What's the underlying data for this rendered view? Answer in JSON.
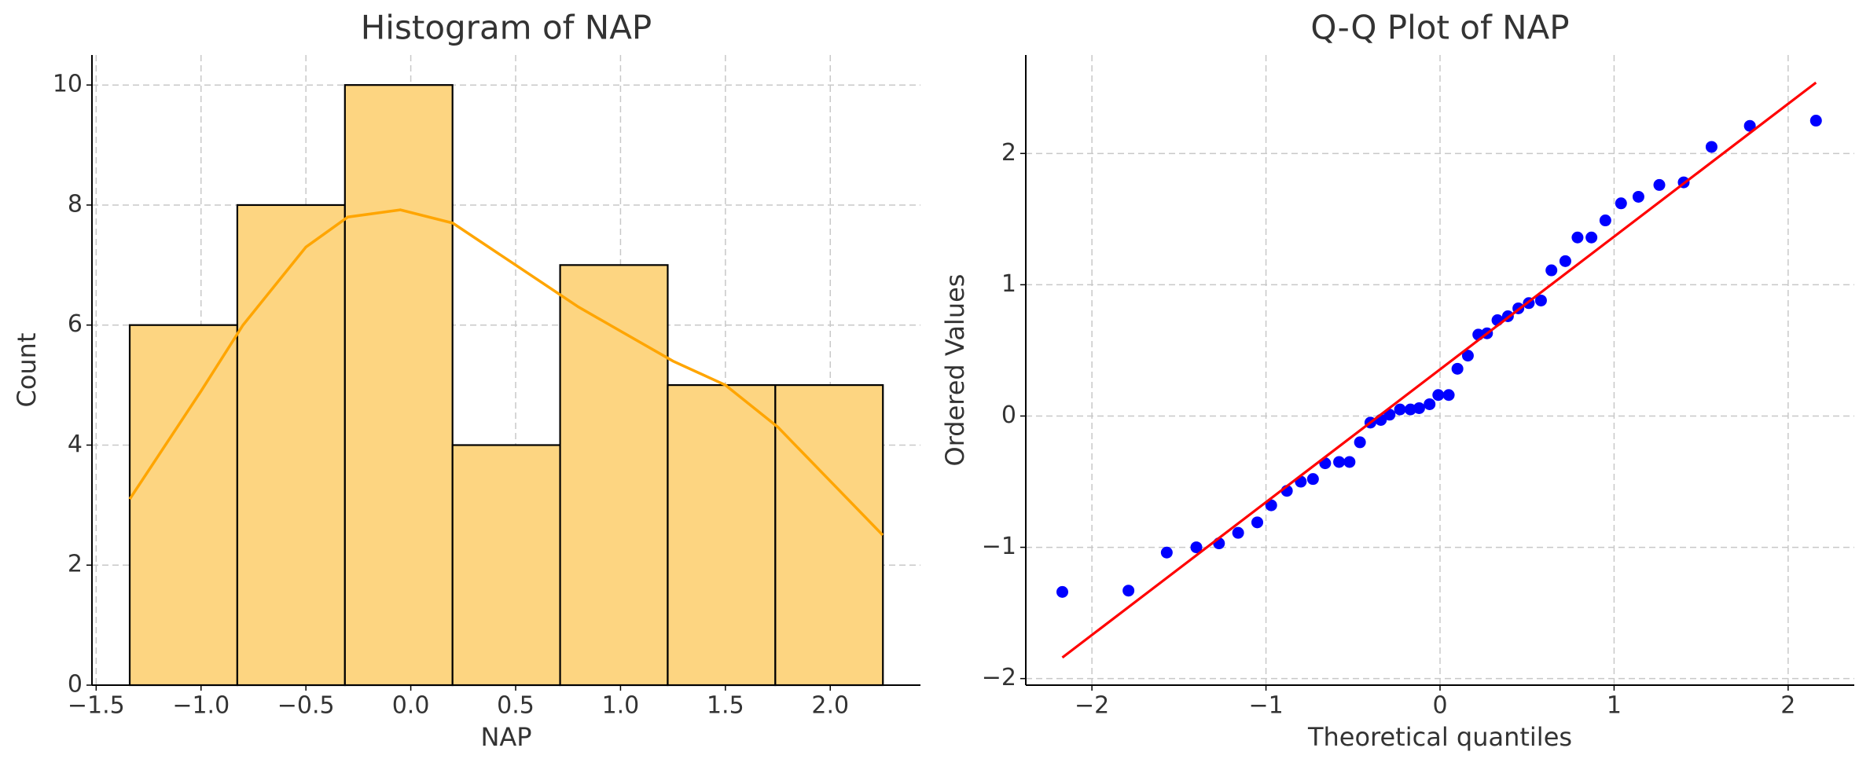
{
  "chart_data": [
    {
      "type": "histogram",
      "title": "Histogram of NAP",
      "x_label": "NAP",
      "y_label": "Count",
      "bins": [
        -1.34,
        -0.827,
        -0.314,
        0.199,
        0.712,
        1.225,
        1.738,
        2.251
      ],
      "values": [
        6,
        8,
        10,
        4,
        7,
        5,
        5
      ],
      "color": "#fdd581",
      "edgecolor": "#000000",
      "kde": {
        "x": [
          -1.34,
          -1.0,
          -0.8,
          -0.5,
          -0.3,
          -0.05,
          0.2,
          0.5,
          0.8,
          1.0,
          1.25,
          1.5,
          1.75,
          2.0,
          2.25
        ],
        "values": [
          3.1,
          4.9,
          6.0,
          7.3,
          7.8,
          7.92,
          7.7,
          7.0,
          6.3,
          5.9,
          5.4,
          5.0,
          4.3,
          3.4,
          2.5
        ],
        "color": "#ffa500"
      },
      "xlim": [
        -1.52,
        2.43
      ],
      "ylim": [
        0,
        10.5
      ],
      "xticks": [
        {
          "value": -1.5,
          "label": "−1.5"
        },
        {
          "value": -1.0,
          "label": "−1.0"
        },
        {
          "value": -0.5,
          "label": "−0.5"
        },
        {
          "value": 0,
          "label": "0.0"
        },
        0.5,
        {
          "value": 1,
          "label": "1.0"
        },
        1.5,
        {
          "value": 2,
          "label": "2.0"
        }
      ],
      "yticks": [
        0,
        2,
        4,
        6,
        8,
        10
      ],
      "grid": true
    },
    {
      "type": "scatter",
      "title": "Q-Q Plot of NAP",
      "x_label": "Theoretical quantiles",
      "y_label": "Ordered Values",
      "x": [
        -2.17,
        -1.79,
        -1.57,
        -1.4,
        -1.27,
        -1.16,
        -1.05,
        -0.97,
        -0.88,
        -0.8,
        -0.73,
        -0.66,
        -0.58,
        -0.52,
        -0.46,
        -0.4,
        -0.34,
        -0.29,
        -0.23,
        -0.17,
        -0.12,
        -0.06,
        -0.01,
        0.05,
        0.1,
        0.16,
        0.22,
        0.27,
        0.33,
        0.39,
        0.45,
        0.51,
        0.58,
        0.64,
        0.72,
        0.79,
        0.87,
        0.95,
        1.04,
        1.14,
        1.26,
        1.4,
        1.56,
        1.78,
        2.16
      ],
      "values": [
        -1.34,
        -1.33,
        -1.04,
        -1.0,
        -0.97,
        -0.89,
        -0.81,
        -0.68,
        -0.57,
        -0.5,
        -0.48,
        -0.36,
        -0.35,
        -0.35,
        -0.2,
        -0.05,
        -0.03,
        0.01,
        0.05,
        0.05,
        0.06,
        0.09,
        0.16,
        0.16,
        0.36,
        0.46,
        0.62,
        0.63,
        0.73,
        0.76,
        0.82,
        0.86,
        0.88,
        1.11,
        1.18,
        1.36,
        1.36,
        1.49,
        1.62,
        1.67,
        1.76,
        1.78,
        2.05,
        2.21,
        2.25
      ],
      "color": "#0000ff",
      "fit": {
        "x": [
          -2.17,
          2.16
        ],
        "values": [
          -1.84,
          2.54
        ],
        "color": "#ff0000"
      },
      "xlim": [
        -2.38,
        2.38
      ],
      "ylim": [
        -2.05,
        2.75
      ],
      "xticks": [
        {
          "value": -2,
          "label": "−2"
        },
        {
          "value": -1,
          "label": "−1"
        },
        0,
        1,
        2
      ],
      "yticks": [
        {
          "value": -2,
          "label": "−2"
        },
        {
          "value": -1,
          "label": "−1"
        },
        0,
        1,
        2
      ],
      "grid": true
    }
  ]
}
